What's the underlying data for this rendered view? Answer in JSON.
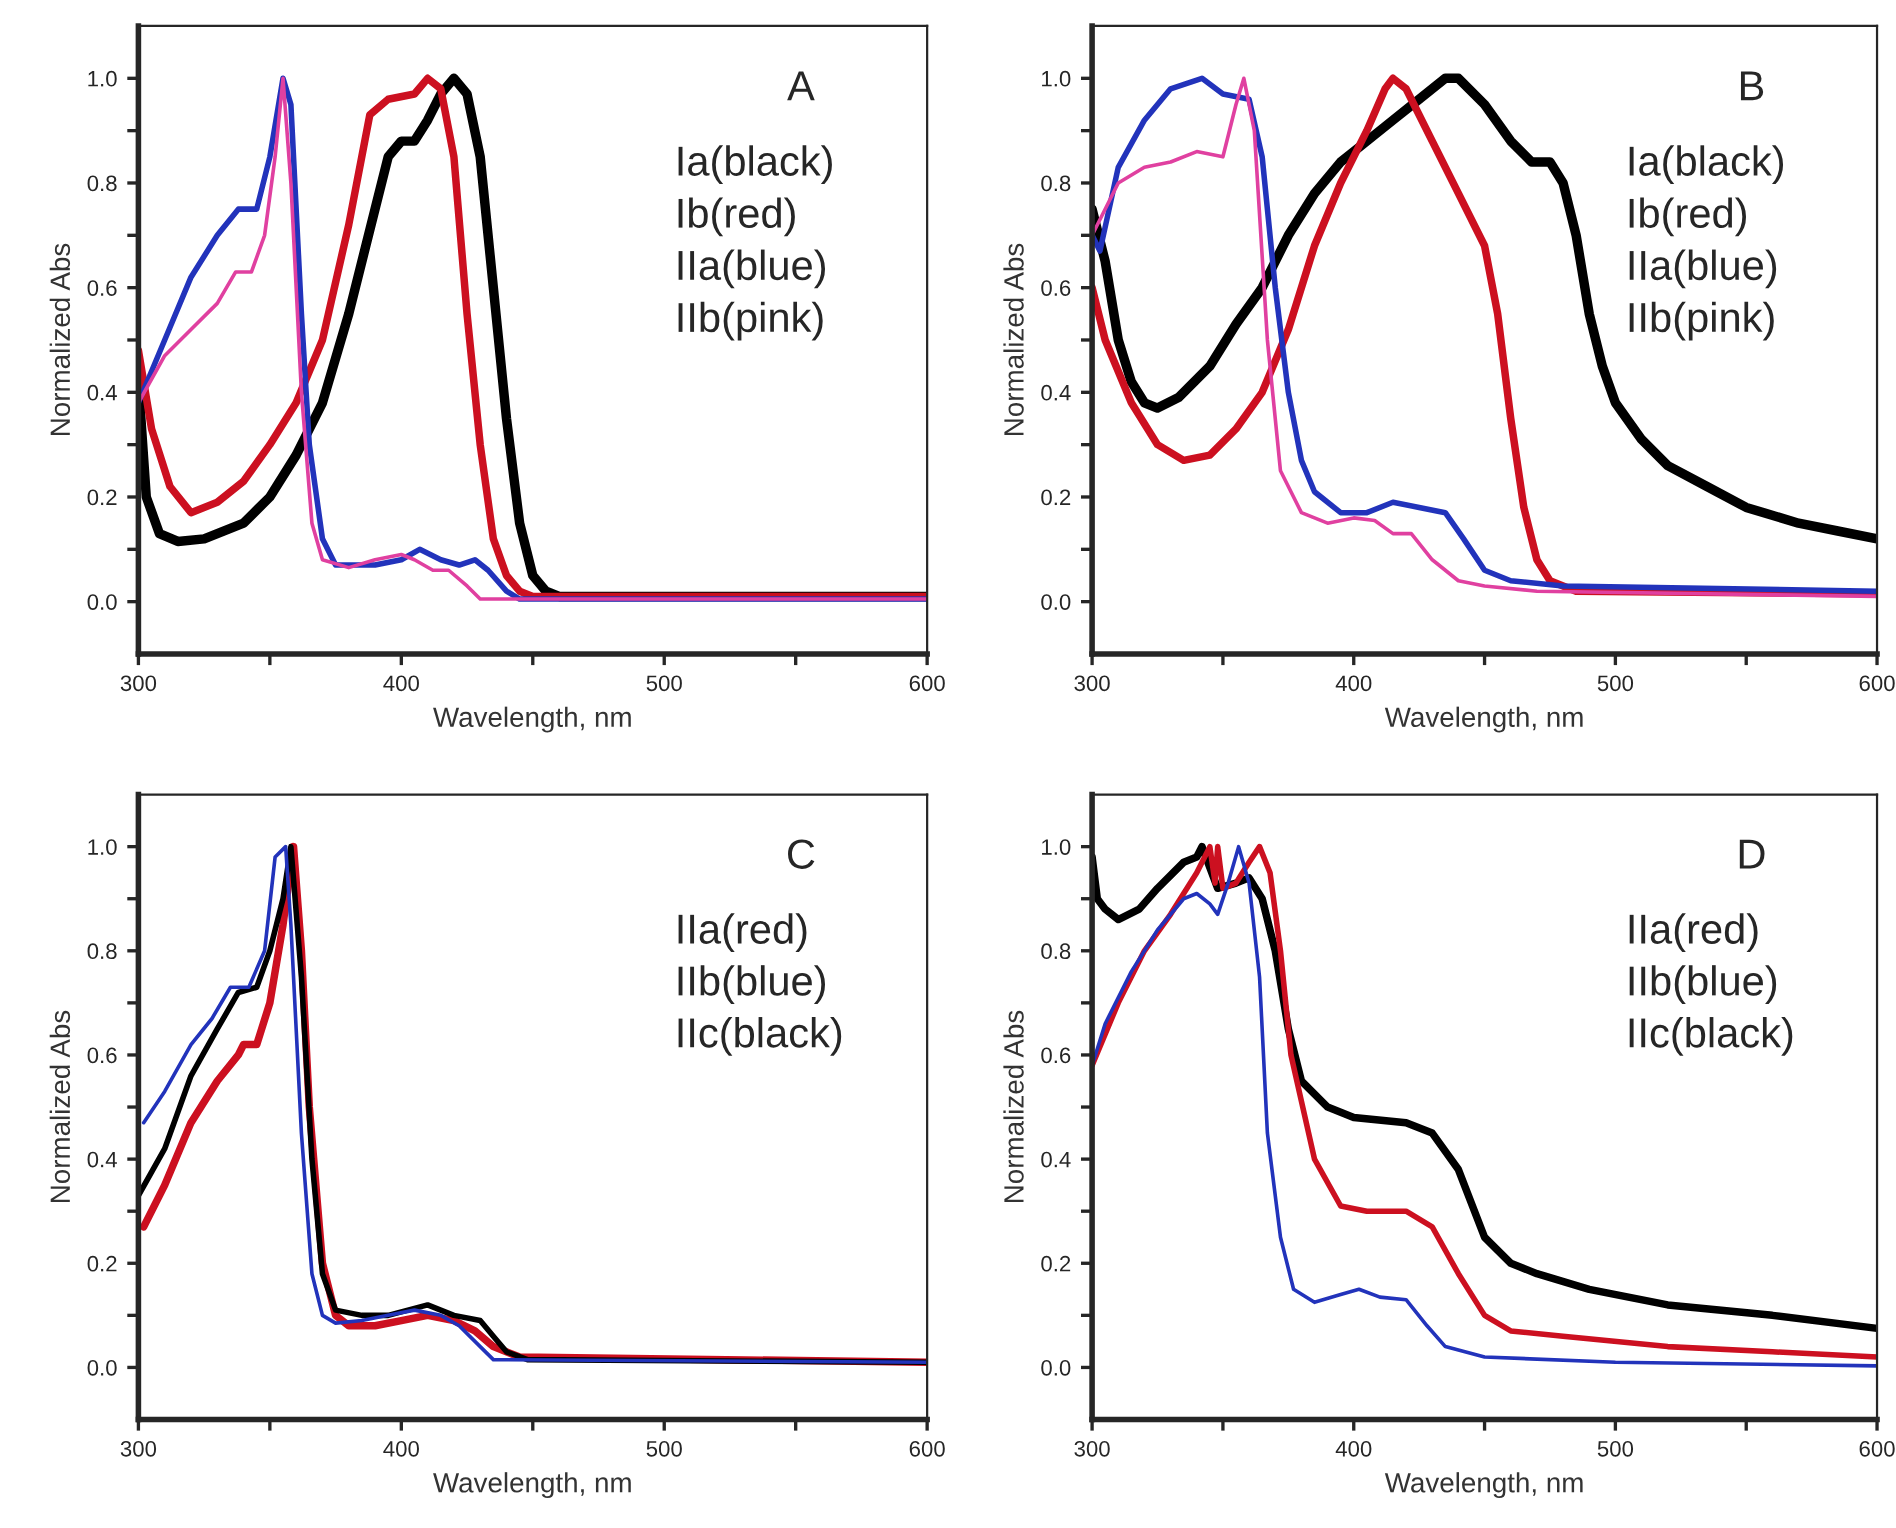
{
  "chart_data": [
    {
      "type": "line",
      "title": "A",
      "xlabel": "Wavelength, nm",
      "ylabel": "Normalized Abs",
      "annotations": [
        "Ia(black)",
        "Ib(red)",
        "IIa(blue)",
        "IIb(pink)"
      ],
      "xlim": [
        300,
        600
      ],
      "ylim": [
        -0.1,
        1.1
      ],
      "xticks": [
        300,
        {
          "value": 350,
          "label": null
        },
        400,
        {
          "value": 450,
          "label": null
        },
        500,
        {
          "value": 550,
          "label": null
        },
        600
      ],
      "yticks": [
        {
          "value": 0,
          "label": "0.0"
        },
        {
          "value": 0.1,
          "label": null
        },
        0.2,
        {
          "value": 0.3,
          "label": null
        },
        0.4,
        {
          "value": 0.5,
          "label": null
        },
        0.6,
        {
          "value": 0.7,
          "label": null
        },
        0.8,
        {
          "value": 0.9,
          "label": null
        },
        {
          "value": 1,
          "label": "1.0"
        }
      ],
      "grid": false,
      "legend": false,
      "series": [
        {
          "color": "#000000",
          "x": [
            300,
            303,
            308,
            315,
            325,
            340,
            350,
            360,
            370,
            380,
            390,
            395,
            400,
            405,
            410,
            415,
            420,
            425,
            430,
            435,
            440,
            445,
            450,
            455,
            460,
            600
          ],
          "values": [
            0.42,
            0.2,
            0.13,
            0.115,
            0.12,
            0.15,
            0.2,
            0.28,
            0.38,
            0.55,
            0.75,
            0.85,
            0.88,
            0.88,
            0.92,
            0.97,
            1.0,
            0.97,
            0.85,
            0.6,
            0.35,
            0.15,
            0.05,
            0.02,
            0.01,
            0.01
          ]
        },
        {
          "color": "#cc1020",
          "x": [
            300,
            305,
            312,
            320,
            330,
            340,
            350,
            360,
            370,
            380,
            388,
            395,
            405,
            410,
            415,
            420,
            425,
            430,
            435,
            440,
            445,
            450,
            600
          ],
          "values": [
            0.48,
            0.33,
            0.22,
            0.17,
            0.19,
            0.23,
            0.3,
            0.38,
            0.5,
            0.72,
            0.93,
            0.96,
            0.97,
            1.0,
            0.98,
            0.85,
            0.55,
            0.3,
            0.12,
            0.05,
            0.02,
            0.01,
            0.01
          ]
        },
        {
          "color": "#2233bb",
          "x": [
            300,
            310,
            320,
            330,
            338,
            345,
            350,
            355,
            358,
            362,
            365,
            370,
            375,
            390,
            400,
            407,
            415,
            422,
            428,
            433,
            440,
            445,
            600
          ],
          "values": [
            0.38,
            0.5,
            0.62,
            0.7,
            0.75,
            0.75,
            0.85,
            1.0,
            0.95,
            0.55,
            0.3,
            0.12,
            0.07,
            0.07,
            0.08,
            0.1,
            0.08,
            0.07,
            0.08,
            0.06,
            0.02,
            0.005,
            0.005
          ]
        },
        {
          "color": "#e040a0",
          "x": [
            300,
            310,
            320,
            330,
            337,
            343,
            348,
            352,
            355,
            358,
            362,
            366,
            370,
            380,
            390,
            400,
            405,
            412,
            418,
            425,
            430,
            600
          ],
          "values": [
            0.38,
            0.47,
            0.52,
            0.57,
            0.63,
            0.63,
            0.7,
            0.85,
            1.0,
            0.8,
            0.4,
            0.15,
            0.08,
            0.065,
            0.08,
            0.09,
            0.08,
            0.06,
            0.06,
            0.03,
            0.005,
            0.005
          ]
        }
      ]
    },
    {
      "type": "line",
      "title": "B",
      "xlabel": "Wavelength, nm",
      "ylabel": "Normalized Abs",
      "annotations": [
        "Ia(black)",
        "Ib(red)",
        "IIa(blue)",
        "IIb(pink)"
      ],
      "xlim": [
        300,
        600
      ],
      "ylim": [
        -0.1,
        1.1
      ],
      "xticks": [
        300,
        {
          "value": 350,
          "label": null
        },
        400,
        {
          "value": 450,
          "label": null
        },
        500,
        {
          "value": 550,
          "label": null
        },
        600
      ],
      "yticks": [
        {
          "value": 0,
          "label": "0.0"
        },
        {
          "value": 0.1,
          "label": null
        },
        0.2,
        {
          "value": 0.3,
          "label": null
        },
        0.4,
        {
          "value": 0.5,
          "label": null
        },
        0.6,
        {
          "value": 0.7,
          "label": null
        },
        0.8,
        {
          "value": 0.9,
          "label": null
        },
        {
          "value": 1,
          "label": "1.0"
        }
      ],
      "grid": false,
      "legend": false,
      "series": [
        {
          "color": "#000000",
          "x": [
            300,
            305,
            310,
            315,
            320,
            325,
            333,
            345,
            355,
            365,
            375,
            385,
            395,
            405,
            415,
            425,
            435,
            440,
            450,
            460,
            468,
            475,
            480,
            485,
            490,
            495,
            500,
            510,
            520,
            535,
            550,
            570,
            585,
            600
          ],
          "values": [
            0.75,
            0.65,
            0.5,
            0.42,
            0.38,
            0.37,
            0.39,
            0.45,
            0.53,
            0.6,
            0.7,
            0.78,
            0.84,
            0.88,
            0.92,
            0.96,
            1.0,
            1.0,
            0.95,
            0.88,
            0.84,
            0.84,
            0.8,
            0.7,
            0.55,
            0.45,
            0.38,
            0.31,
            0.26,
            0.22,
            0.18,
            0.15,
            0.135,
            0.12
          ]
        },
        {
          "color": "#cc1020",
          "x": [
            300,
            305,
            315,
            325,
            335,
            345,
            355,
            365,
            375,
            385,
            395,
            405,
            412,
            415,
            420,
            430,
            440,
            450,
            455,
            460,
            465,
            470,
            475,
            485,
            600
          ],
          "values": [
            0.6,
            0.5,
            0.38,
            0.3,
            0.27,
            0.28,
            0.33,
            0.4,
            0.52,
            0.68,
            0.8,
            0.9,
            0.98,
            1.0,
            0.98,
            0.88,
            0.78,
            0.68,
            0.55,
            0.35,
            0.18,
            0.08,
            0.04,
            0.02,
            0.015
          ]
        },
        {
          "color": "#2233bb",
          "x": [
            300,
            303,
            310,
            320,
            330,
            342,
            350,
            360,
            365,
            370,
            375,
            380,
            385,
            395,
            405,
            415,
            425,
            435,
            442,
            450,
            460,
            480,
            600
          ],
          "values": [
            0.7,
            0.67,
            0.83,
            0.92,
            0.98,
            1.0,
            0.97,
            0.96,
            0.85,
            0.6,
            0.4,
            0.27,
            0.21,
            0.17,
            0.17,
            0.19,
            0.18,
            0.17,
            0.12,
            0.06,
            0.04,
            0.03,
            0.02
          ]
        },
        {
          "color": "#e040a0",
          "x": [
            300,
            310,
            320,
            330,
            340,
            350,
            355,
            358,
            362,
            367,
            372,
            380,
            390,
            400,
            408,
            415,
            422,
            430,
            440,
            450,
            470,
            600
          ],
          "values": [
            0.7,
            0.8,
            0.83,
            0.84,
            0.86,
            0.85,
            0.95,
            1.0,
            0.9,
            0.5,
            0.25,
            0.17,
            0.15,
            0.16,
            0.155,
            0.13,
            0.13,
            0.08,
            0.04,
            0.03,
            0.02,
            0.01
          ]
        }
      ]
    },
    {
      "type": "line",
      "title": "C",
      "xlabel": "Wavelength, nm",
      "ylabel": "Normalized Abs",
      "annotations": [
        "IIa(red)",
        "IIb(blue)",
        "IIc(black)"
      ],
      "xlim": [
        300,
        600
      ],
      "ylim": [
        -0.1,
        1.1
      ],
      "xticks": [
        300,
        {
          "value": 350,
          "label": null
        },
        400,
        {
          "value": 450,
          "label": null
        },
        500,
        {
          "value": 550,
          "label": null
        },
        600
      ],
      "yticks": [
        {
          "value": 0,
          "label": "0.0"
        },
        {
          "value": 0.1,
          "label": null
        },
        0.2,
        {
          "value": 0.3,
          "label": null
        },
        0.4,
        {
          "value": 0.5,
          "label": null
        },
        0.6,
        {
          "value": 0.7,
          "label": null
        },
        0.8,
        {
          "value": 0.9,
          "label": null
        },
        {
          "value": 1,
          "label": "1.0"
        }
      ],
      "grid": false,
      "legend": false,
      "series": [
        {
          "color": "#cc1020",
          "x": [
            302,
            310,
            320,
            330,
            338,
            340,
            345,
            350,
            355,
            359,
            362,
            365,
            370,
            375,
            380,
            390,
            400,
            410,
            420,
            428,
            435,
            445,
            600
          ],
          "values": [
            0.27,
            0.35,
            0.47,
            0.55,
            0.6,
            0.62,
            0.62,
            0.7,
            0.85,
            1.0,
            0.8,
            0.5,
            0.2,
            0.1,
            0.08,
            0.08,
            0.09,
            0.1,
            0.09,
            0.07,
            0.04,
            0.02,
            0.01
          ]
        },
        {
          "color": "#000000",
          "x": [
            300,
            310,
            320,
            330,
            338,
            345,
            350,
            355,
            358,
            362,
            366,
            370,
            375,
            385,
            395,
            410,
            420,
            430,
            435,
            440,
            448,
            600
          ],
          "values": [
            0.33,
            0.42,
            0.56,
            0.65,
            0.72,
            0.73,
            0.8,
            0.9,
            1.0,
            0.75,
            0.4,
            0.18,
            0.11,
            0.1,
            0.1,
            0.12,
            0.1,
            0.09,
            0.06,
            0.03,
            0.015,
            0.01
          ]
        },
        {
          "color": "#2233bb",
          "x": [
            302,
            310,
            320,
            328,
            335,
            342,
            348,
            352,
            356,
            358,
            362,
            366,
            370,
            375,
            385,
            395,
            405,
            415,
            422,
            430,
            435,
            600
          ],
          "values": [
            0.47,
            0.53,
            0.62,
            0.67,
            0.73,
            0.73,
            0.8,
            0.98,
            1.0,
            0.85,
            0.45,
            0.18,
            0.1,
            0.085,
            0.09,
            0.1,
            0.11,
            0.1,
            0.08,
            0.04,
            0.015,
            0.01
          ]
        }
      ]
    },
    {
      "type": "line",
      "title": "D",
      "xlabel": "Wavelength, nm",
      "ylabel": "Normalized Abs",
      "annotations": [
        "IIa(red)",
        "IIb(blue)",
        "IIc(black)"
      ],
      "xlim": [
        300,
        600
      ],
      "ylim": [
        -0.1,
        1.1
      ],
      "xticks": [
        300,
        {
          "value": 350,
          "label": null
        },
        400,
        {
          "value": 450,
          "label": null
        },
        500,
        {
          "value": 550,
          "label": null
        },
        600
      ],
      "yticks": [
        {
          "value": 0,
          "label": "0.0"
        },
        {
          "value": 0.1,
          "label": null
        },
        0.2,
        {
          "value": 0.3,
          "label": null
        },
        0.4,
        {
          "value": 0.5,
          "label": null
        },
        0.6,
        {
          "value": 0.7,
          "label": null
        },
        0.8,
        {
          "value": 0.9,
          "label": null
        },
        {
          "value": 1,
          "label": "1.0"
        }
      ],
      "grid": false,
      "legend": false,
      "series": [
        {
          "color": "#000000",
          "x": [
            300,
            302,
            305,
            310,
            318,
            325,
            335,
            340,
            342,
            348,
            355,
            360,
            365,
            370,
            375,
            380,
            390,
            400,
            420,
            430,
            440,
            450,
            460,
            470,
            490,
            520,
            560,
            600
          ],
          "values": [
            0.98,
            0.9,
            0.88,
            0.86,
            0.88,
            0.92,
            0.97,
            0.98,
            1.0,
            0.92,
            0.93,
            0.94,
            0.9,
            0.8,
            0.65,
            0.55,
            0.5,
            0.48,
            0.47,
            0.45,
            0.38,
            0.25,
            0.2,
            0.18,
            0.15,
            0.12,
            0.1,
            0.075
          ]
        },
        {
          "color": "#cc1020",
          "x": [
            300,
            310,
            320,
            330,
            340,
            345,
            347,
            348,
            350,
            355,
            360,
            364,
            368,
            372,
            376,
            385,
            395,
            405,
            420,
            430,
            440,
            450,
            460,
            480,
            520,
            560,
            600
          ],
          "values": [
            0.58,
            0.7,
            0.8,
            0.87,
            0.95,
            1.0,
            0.93,
            1.0,
            0.92,
            0.93,
            0.97,
            1.0,
            0.95,
            0.8,
            0.6,
            0.4,
            0.31,
            0.3,
            0.3,
            0.27,
            0.18,
            0.1,
            0.07,
            0.06,
            0.04,
            0.03,
            0.02
          ]
        },
        {
          "color": "#2233bb",
          "x": [
            300,
            305,
            315,
            325,
            335,
            340,
            345,
            348,
            352,
            356,
            360,
            364,
            367,
            372,
            377,
            385,
            395,
            402,
            410,
            420,
            428,
            435,
            450,
            500,
            600
          ],
          "values": [
            0.58,
            0.66,
            0.76,
            0.84,
            0.9,
            0.91,
            0.89,
            0.87,
            0.93,
            1.0,
            0.93,
            0.75,
            0.45,
            0.25,
            0.15,
            0.125,
            0.14,
            0.15,
            0.135,
            0.13,
            0.08,
            0.04,
            0.02,
            0.01,
            0.003
          ]
        }
      ]
    }
  ]
}
